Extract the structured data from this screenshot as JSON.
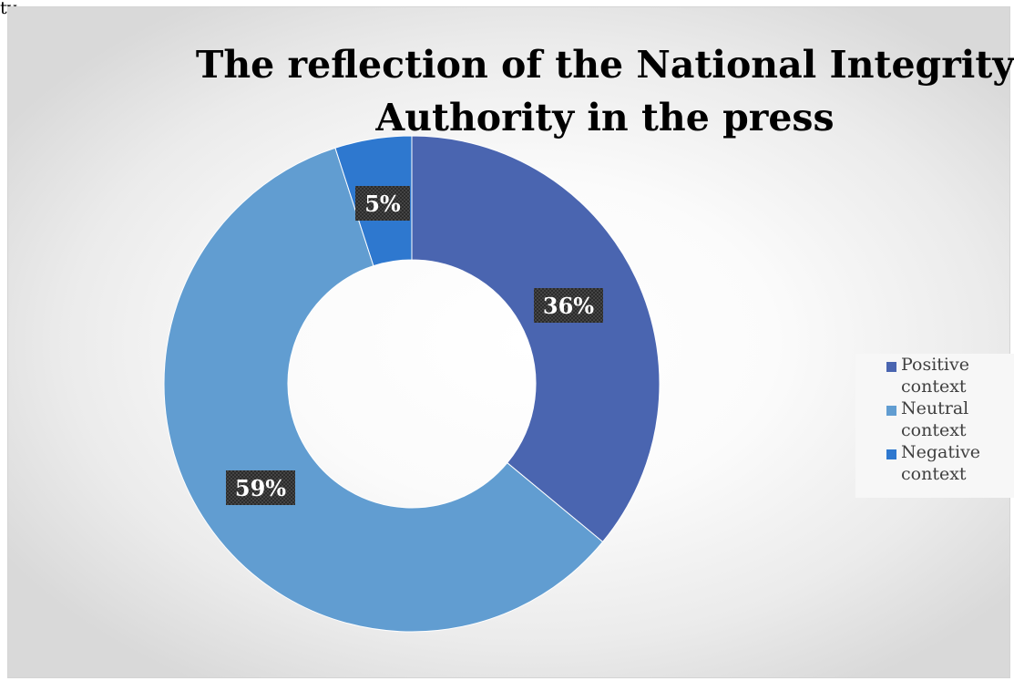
{
  "top_text": "ty",
  "chart_data": {
    "type": "pie",
    "variant": "donut",
    "title": "The reflection of the National Integrity Authority in the press",
    "title_lines": [
      "The reflection of the National Integrity",
      "Authority in the press"
    ],
    "categories": [
      "Positive context",
      "Neutral context",
      "Negative context"
    ],
    "values": [
      36,
      59,
      5
    ],
    "value_labels": [
      "36%",
      "59%",
      "5%"
    ],
    "colors": [
      "#4a65b0",
      "#619dd1",
      "#2e78cf"
    ],
    "legend_position": "right",
    "legend": [
      {
        "label_line1": "Positive",
        "label_line2": "context",
        "color": "#4a65b0"
      },
      {
        "label_line1": "Neutral",
        "label_line2": "context",
        "color": "#619dd1"
      },
      {
        "label_line1": "Negative",
        "label_line2": "context",
        "color": "#2e78cf"
      }
    ]
  }
}
